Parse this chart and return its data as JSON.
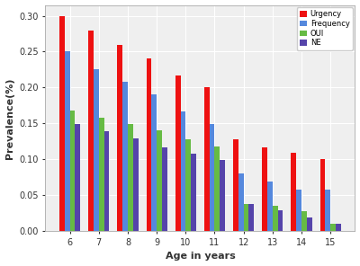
{
  "ages": [
    6,
    7,
    8,
    9,
    10,
    11,
    12,
    13,
    14,
    15
  ],
  "urgency": [
    0.3,
    0.28,
    0.26,
    0.24,
    0.217,
    0.2,
    0.128,
    0.117,
    0.109,
    0.1
  ],
  "frequency": [
    0.25,
    0.226,
    0.208,
    0.19,
    0.167,
    0.149,
    0.08,
    0.069,
    0.058,
    0.058
  ],
  "oui": [
    0.168,
    0.158,
    0.149,
    0.14,
    0.128,
    0.118,
    0.038,
    0.035,
    0.028,
    0.01
  ],
  "ne": [
    0.149,
    0.139,
    0.129,
    0.117,
    0.108,
    0.099,
    0.038,
    0.029,
    0.019,
    0.01
  ],
  "colors": {
    "urgency": "#EE1111",
    "frequency": "#5588DD",
    "oui": "#66BB44",
    "ne": "#5544AA"
  },
  "legend_labels": [
    "Urgency",
    "Frequency",
    "OUI",
    "NE"
  ],
  "xlabel": "Age in years",
  "ylabel": "Prevalence(%)",
  "ylim": [
    0,
    0.315
  ],
  "yticks": [
    0.0,
    0.05,
    0.1,
    0.15,
    0.2,
    0.25,
    0.3
  ],
  "background_color": "#EFEFEF",
  "grid_color": "#FFFFFF",
  "bar_width": 0.18,
  "tick_fontsize": 7,
  "label_fontsize": 8,
  "legend_fontsize": 6
}
